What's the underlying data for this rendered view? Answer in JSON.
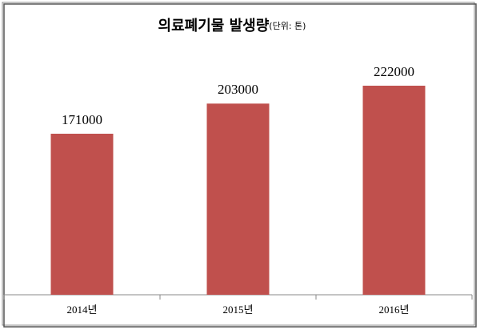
{
  "chart_data": {
    "type": "bar",
    "title": "의료폐기물 발생량",
    "subtitle": "(단위: 톤)",
    "categories": [
      "2014년",
      "2015년",
      "2016년"
    ],
    "values": [
      171000,
      203000,
      222000
    ],
    "color": "#c0504d"
  }
}
